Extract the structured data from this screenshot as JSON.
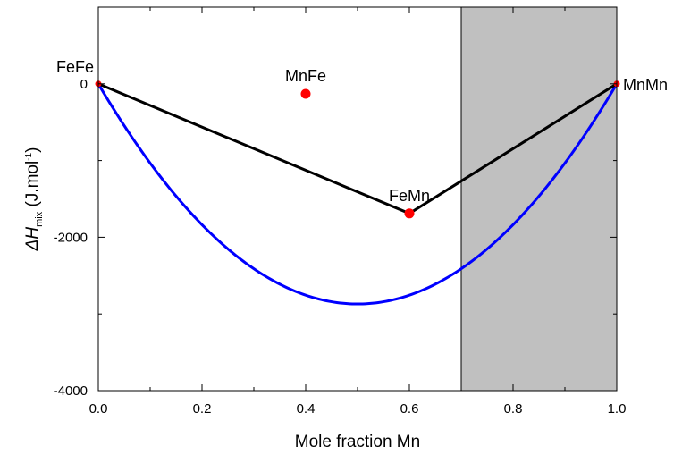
{
  "chart_data": {
    "type": "line",
    "xlabel": "Mole fraction Mn",
    "ylabel": {
      "delta": "Δ",
      "symbol": "H",
      "subscript": "mix",
      "unit_open": " (J.mol",
      "unit_exp": "-1",
      "unit_close": ")"
    },
    "xlim": [
      0.0,
      1.0
    ],
    "ylim": [
      -4000,
      1000
    ],
    "x_ticks": [
      "0.0",
      "0.2",
      "0.4",
      "0.6",
      "0.8",
      "1.0"
    ],
    "y_ticks": [
      "-4000",
      "-2000",
      "0"
    ],
    "grid": false,
    "shaded_region": {
      "x_from": 0.7,
      "x_to": 1.0,
      "color": "#c0c0c0"
    },
    "points": [
      {
        "label": "FeFe",
        "x": 0.0,
        "y": 0
      },
      {
        "label": "MnFe",
        "x": 0.4,
        "y": -130
      },
      {
        "label": "FeMn",
        "x": 0.6,
        "y": -1690
      },
      {
        "label": "MnMn",
        "x": 1.0,
        "y": 0
      }
    ],
    "series": [
      {
        "color": "#000000",
        "x": [
          0.0,
          0.6,
          1.0
        ],
        "y": [
          0,
          -1690,
          0
        ]
      },
      {
        "color": "#0000ff",
        "formula": "y = -11480 * x * (1 - x)",
        "min_point": {
          "x": 0.5,
          "y": -2870
        }
      }
    ],
    "point_color": "#ff0000"
  }
}
